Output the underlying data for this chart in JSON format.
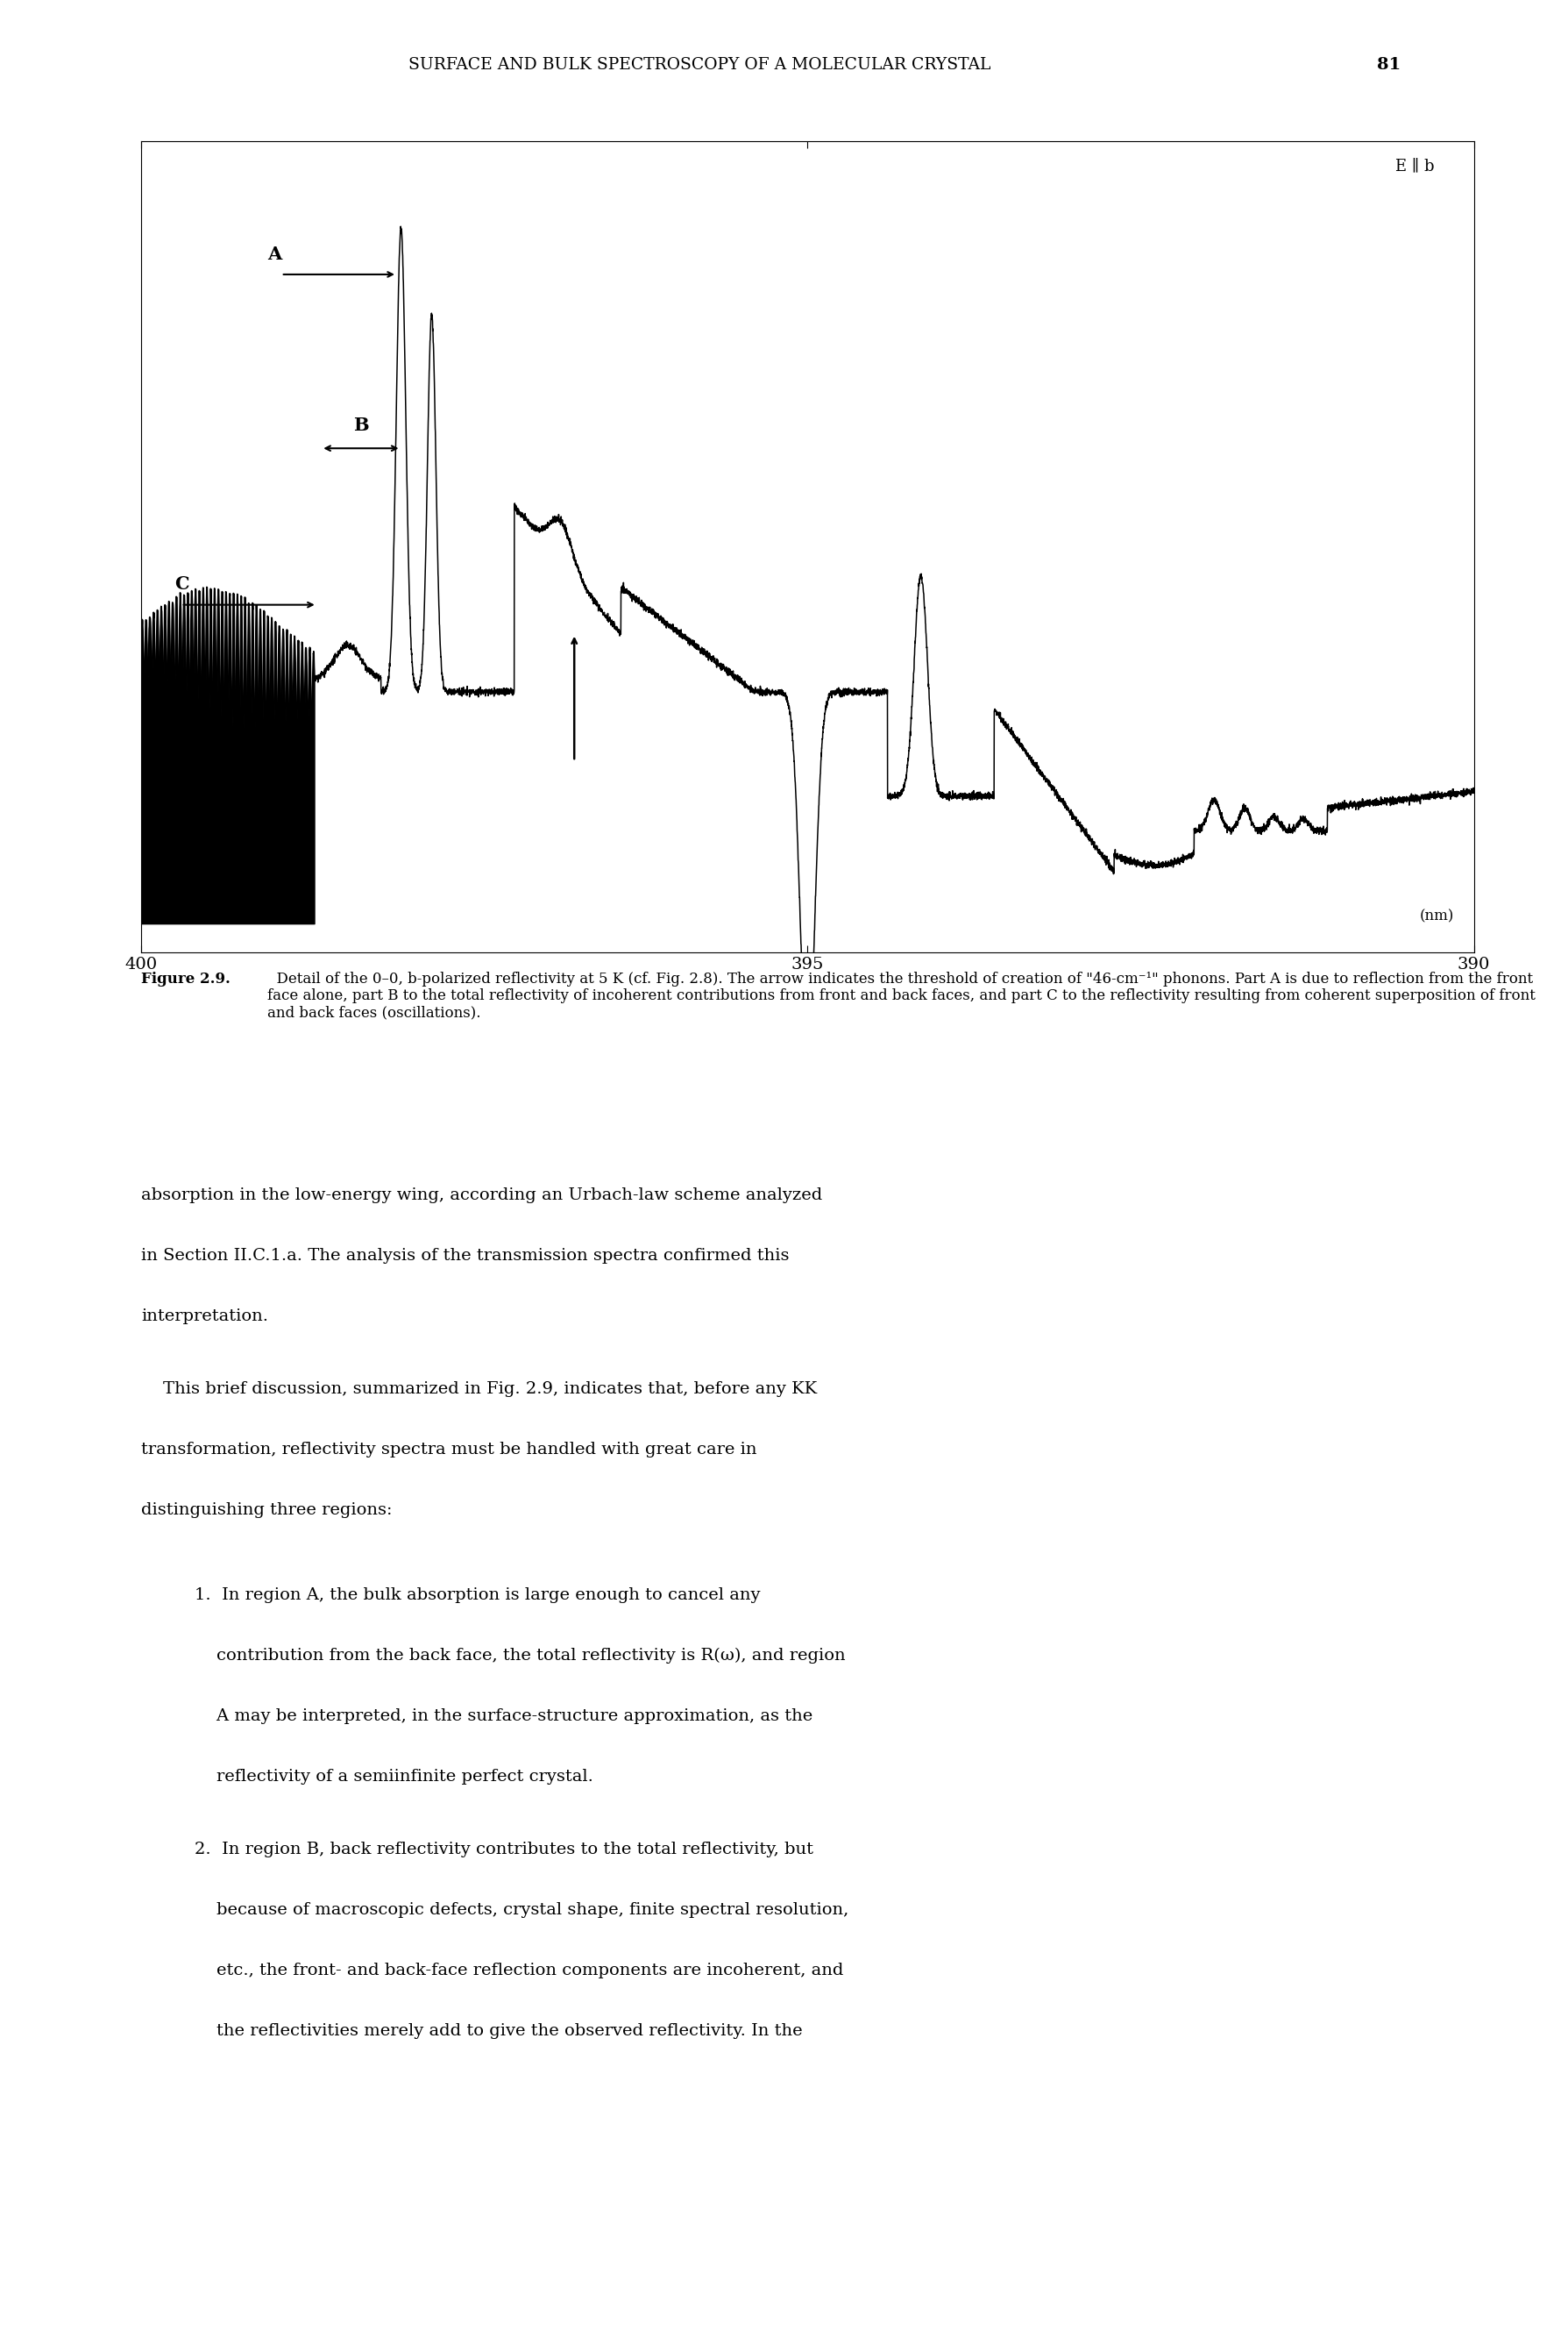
{
  "title": "SURFACE AND BULK SPECTROSCOPY OF A MOLECULAR CRYSTAL",
  "page_number": "81",
  "ellb_label": "E ∥ b",
  "nm_label": "(nm)",
  "background_color": "#ffffff",
  "line_color": "#000000",
  "xticks": [
    400,
    395,
    390
  ],
  "xlabels": [
    "400",
    "395",
    "390"
  ],
  "caption_bold": "Figure 2.9.",
  "caption_normal": "  Detail of the 0–0, b-polarized reflectivity at 5 K (cf. Fig. 2.8). The arrow indicates the threshold of creation of \"46-cm⁻¹\" phonons. Part A is due to reflection from the front face alone, part B to the total reflectivity of incoherent contributions from front and back faces, and part C to the reflectivity resulting from coherent superposition of front and back faces (oscillations).",
  "body_para1_line1": "absorption in the low-energy wing, according an Urbach-law scheme analyzed",
  "body_para1_line2": "in Section II.C.1.a. The analysis of the transmission spectra confirmed this",
  "body_para1_line3": "interpretation.",
  "body_para2_line1": "    This brief discussion, summarized in Fig. 2.9, indicates that, before any KK",
  "body_para2_line2": "transformation, reflectivity spectra must be handled with great care in",
  "body_para2_line3": "distinguishing three regions:",
  "list1_line1": "1.  In region A, the bulk absorption is large enough to cancel any",
  "list1_line2": "    contribution from the back face, the total reflectivity is R(ω), and region",
  "list1_line3": "    A may be interpreted, in the surface-structure approximation, as the",
  "list1_line4": "    reflectivity of a semiinfinite perfect crystal.",
  "list2_line1": "2.  In region B, back reflectivity contributes to the total reflectivity, but",
  "list2_line2": "    because of macroscopic defects, crystal shape, finite spectral resolution,",
  "list2_line3": "    etc., the front- and back-face reflection components are incoherent, and",
  "list2_line4": "    the reflectivities merely add to give the observed reflectivity. In the"
}
